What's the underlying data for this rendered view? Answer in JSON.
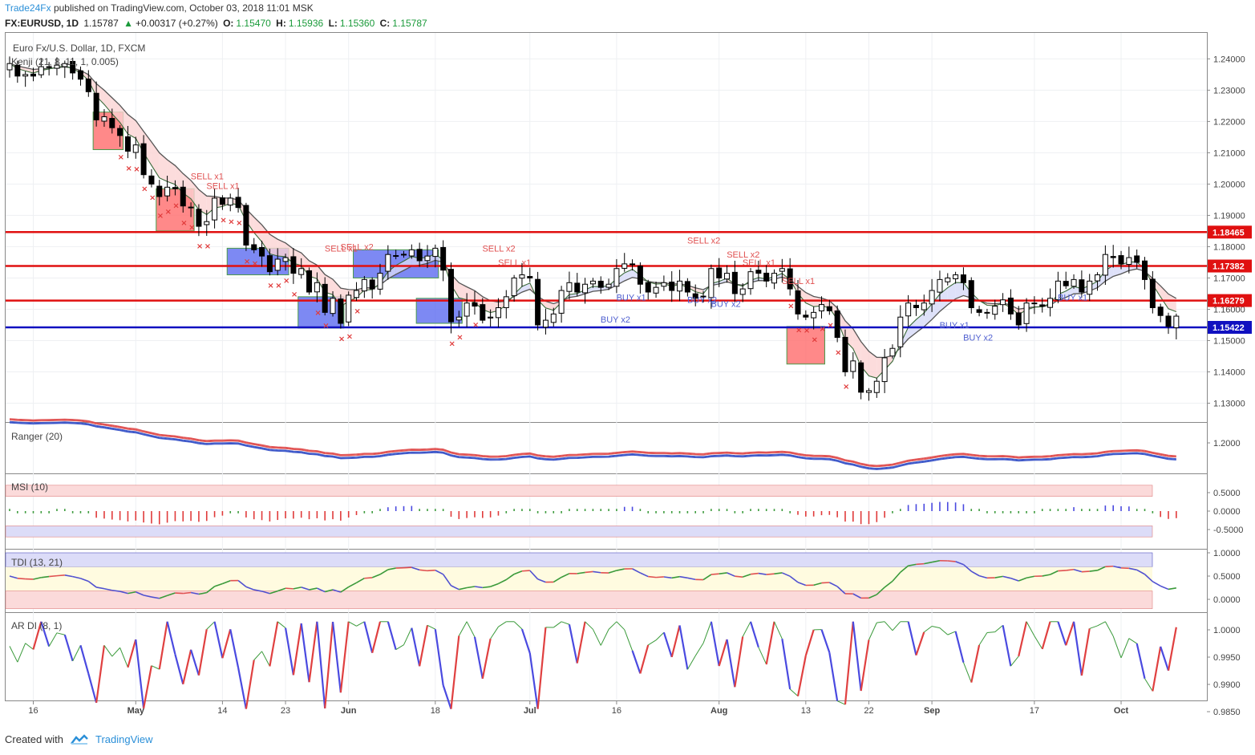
{
  "header": {
    "brand": "Trade24Fx",
    "published": "published on TradingView.com, October 03, 2018 11:01 MSK",
    "symbol": "FX:EURUSD, 1D",
    "last": "1.15787",
    "change": "+0.00317 (+0.27%)",
    "o_label": "O:",
    "o": "1.15470",
    "h_label": "H:",
    "h": "1.15936",
    "l_label": "L:",
    "l": "1.15360",
    "c_label": "C:",
    "c": "1.15787"
  },
  "footer": {
    "created": "Created with",
    "brand": "TradingView"
  },
  "colors": {
    "up": "#ffffff",
    "down": "#000000",
    "level_red": "#e01010",
    "level_blue": "#1010c0",
    "sell": "#e05050",
    "buy": "#5060d0"
  },
  "chart_data": [
    {
      "type": "candlestick",
      "title": "Euro Fx/U.S. Dollar, 1D, FXCM",
      "indicator": "Kenji (21, 8, 11, 1, 0.005)",
      "x_ticks": [
        "16",
        "May",
        "14",
        "23",
        "Jun",
        "18",
        "Jul",
        "16",
        "Aug",
        "13",
        "22",
        "Sep",
        "17",
        "Oct"
      ],
      "ylim": [
        1.125,
        1.2465
      ],
      "y_ticks": [
        "1.24000",
        "1.23000",
        "1.22000",
        "1.21000",
        "1.20000",
        "1.19000",
        "1.18000",
        "1.17000",
        "1.16000",
        "1.15000",
        "1.14000",
        "1.13000"
      ],
      "levels": [
        {
          "label": "1.18465",
          "value": 1.18465,
          "color": "#e01010"
        },
        {
          "label": "1.17382",
          "value": 1.17382,
          "color": "#e01010"
        },
        {
          "label": "1.16279",
          "value": 1.16279,
          "color": "#e01010"
        },
        {
          "label": "1.15422",
          "value": 1.15422,
          "color": "#1010c0"
        }
      ],
      "closes": [
        1.2385,
        1.2345,
        1.235,
        1.2345,
        1.2375,
        1.2375,
        1.238,
        1.2385,
        1.2355,
        1.2335,
        1.2295,
        1.2205,
        1.2215,
        1.218,
        1.2155,
        1.2105,
        1.2125,
        1.203,
        1.2,
        1.196,
        1.199,
        1.1985,
        1.193,
        1.1925,
        1.1865,
        1.188,
        1.1955,
        1.1935,
        1.1955,
        1.1925,
        1.1805,
        1.179,
        1.177,
        1.172,
        1.176,
        1.1765,
        1.1715,
        1.173,
        1.1655,
        1.1685,
        1.159,
        1.1635,
        1.1555,
        1.1645,
        1.166,
        1.1695,
        1.1665,
        1.1715,
        1.1775,
        1.177,
        1.1775,
        1.179,
        1.1755,
        1.177,
        1.1795,
        1.1725,
        1.156,
        1.1575,
        1.162,
        1.161,
        1.1565,
        1.1575,
        1.1605,
        1.164,
        1.17,
        1.171,
        1.17,
        1.155,
        1.1565,
        1.1585,
        1.166,
        1.1685,
        1.1655,
        1.168,
        1.169,
        1.167,
        1.168,
        1.173,
        1.1745,
        1.1745,
        1.168,
        1.1655,
        1.167,
        1.1685,
        1.166,
        1.169,
        1.1655,
        1.1635,
        1.164,
        1.173,
        1.17,
        1.1715,
        1.165,
        1.1665,
        1.172,
        1.1715,
        1.169,
        1.1715,
        1.173,
        1.1665,
        1.1585,
        1.1575,
        1.159,
        1.1615,
        1.1595,
        1.151,
        1.14,
        1.1435,
        1.1335,
        1.134,
        1.137,
        1.1445,
        1.1475,
        1.1575,
        1.162,
        1.1605,
        1.162,
        1.166,
        1.1695,
        1.17,
        1.171,
        1.1685,
        1.1605,
        1.159,
        1.159,
        1.161,
        1.163,
        1.1585,
        1.155,
        1.162,
        1.162,
        1.161,
        1.1635,
        1.169,
        1.1675,
        1.1695,
        1.1655,
        1.169,
        1.171,
        1.1775,
        1.1765,
        1.1745,
        1.1765,
        1.175,
        1.1695,
        1.1605,
        1.158,
        1.1545,
        1.1578
      ]
    },
    {
      "type": "line",
      "title": "Ranger (20)",
      "y_ticks": [
        "1.2000"
      ],
      "series": [
        {
          "color": "#e04040",
          "role": "upper"
        },
        {
          "color": "#3050c0",
          "role": "lower"
        }
      ]
    },
    {
      "type": "bar",
      "title": "MSI (10)",
      "y_ticks": [
        "0.5000",
        "0.0000",
        "-0.5000"
      ],
      "ylim": [
        -0.75,
        0.75
      ],
      "zones": [
        {
          "from": 0.4,
          "to": 0.7,
          "color": "#fbdada"
        },
        {
          "from": -0.4,
          "to": -0.7,
          "color": "#dcdcf8"
        }
      ]
    },
    {
      "type": "line",
      "title": "TDI (13, 21)",
      "y_ticks": [
        "1.0000",
        "0.5000",
        "0.0000"
      ],
      "ylim": [
        -0.2,
        1.05
      ]
    },
    {
      "type": "line",
      "title": "AR DI (8, 1)",
      "y_ticks": [
        "1.0000",
        "0.9950",
        "0.9900",
        "0.9850"
      ],
      "ylim": [
        0.984,
        1.0025
      ]
    }
  ],
  "annotations": {
    "sell_x1": "SELL x1",
    "sell_x2": "SELL x2",
    "buy_x1": "BUY x1",
    "buy_x2": "BUY x2"
  }
}
